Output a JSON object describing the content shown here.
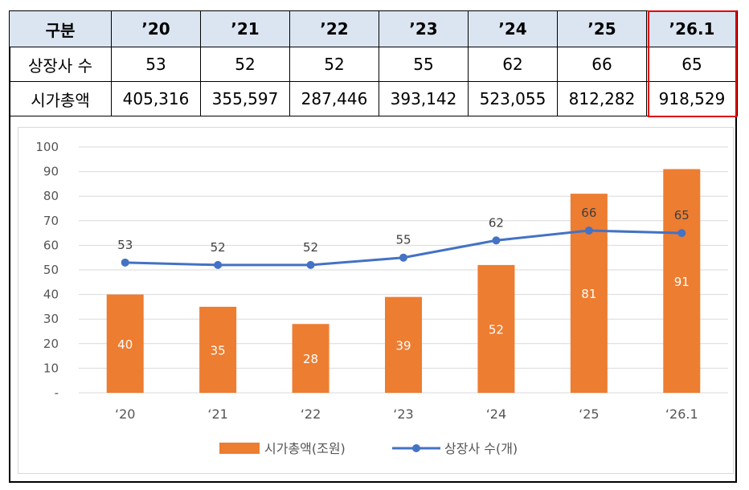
{
  "table": {
    "headers": [
      "구분",
      "’20",
      "’21",
      "’22",
      "’23",
      "’24",
      "’25",
      "’26.1"
    ],
    "rows": [
      {
        "label": "상장사 수",
        "values": [
          "53",
          "52",
          "52",
          "55",
          "62",
          "66",
          "65"
        ]
      },
      {
        "label": "시가총액",
        "values": [
          "405,316",
          "355,597",
          "287,446",
          "393,142",
          "523,055",
          "812,282",
          "918,529"
        ]
      }
    ]
  },
  "colors": {
    "header_bg": "#dbe5f1",
    "highlight": "#e00000",
    "bar": "#ed7d31",
    "line": "#4472c4",
    "gridline": "#d9d9d9"
  },
  "chart_data": {
    "type": "bar",
    "categories": [
      "‘20",
      "‘21",
      "‘22",
      "‘23",
      "‘24",
      "‘25",
      "‘26.1"
    ],
    "series": [
      {
        "name": "시가총액(조원)",
        "type": "bar",
        "values": [
          40,
          35,
          28,
          39,
          52,
          81,
          91
        ]
      },
      {
        "name": "상장사 수(개)",
        "type": "line",
        "values": [
          53,
          52,
          52,
          55,
          62,
          66,
          65
        ]
      }
    ],
    "ylim": [
      0,
      100
    ],
    "yticks": [
      "-",
      "10",
      "20",
      "30",
      "40",
      "50",
      "60",
      "70",
      "80",
      "90",
      "100"
    ],
    "grid": true,
    "legend_position": "bottom"
  }
}
